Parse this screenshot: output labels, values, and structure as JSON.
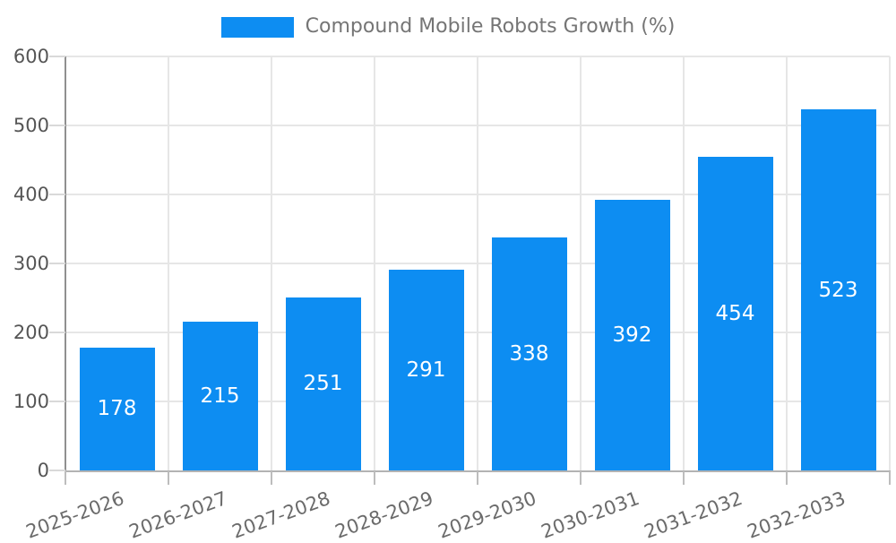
{
  "legend": {
    "label": "Compound Mobile Robots Growth (%)"
  },
  "chart_data": {
    "type": "bar",
    "title": "Compound Mobile Robots Growth (%)",
    "categories": [
      "2025-2026",
      "2026-2027",
      "2027-2028",
      "2028-2029",
      "2029-2030",
      "2030-2031",
      "2031-2032",
      "2032-2033"
    ],
    "series": [
      {
        "name": "Compound Mobile Robots Growth (%)",
        "values": [
          178,
          215,
          251,
          291,
          338,
          392,
          454,
          523
        ]
      }
    ],
    "xlabel": "",
    "ylabel": "",
    "ylim": [
      0,
      600
    ],
    "y_ticks": [
      0,
      100,
      200,
      300,
      400,
      500,
      600
    ],
    "grid": true,
    "legend_position": "top-center",
    "value_labels_position": "inside-center",
    "x_tick_rotation_deg": -20
  },
  "colors": {
    "bar": "#0D8DF2",
    "value_label": "#ffffff",
    "grid": "#e6e6e6",
    "y_axis_line": "#909090",
    "x_axis_line": "#b3b3b3",
    "y_tick_mark": "#d9d9d9",
    "x_tick_mark": "#bdbdbd",
    "y_tick_label": "#555555",
    "x_tick_label": "#6b6b6b",
    "legend_text": "#757575",
    "background": "#ffffff"
  }
}
